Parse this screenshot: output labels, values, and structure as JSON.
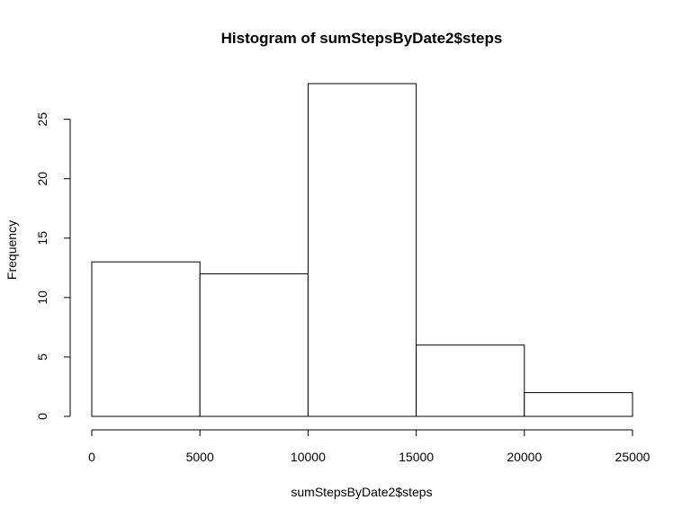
{
  "chart_data": {
    "type": "bar",
    "title": "Histogram of sumStepsByDate2$steps",
    "xlabel": "sumStepsByDate2$steps",
    "ylabel": "Frequency",
    "bins": [
      {
        "start": 0,
        "end": 5000,
        "count": 13
      },
      {
        "start": 5000,
        "end": 10000,
        "count": 12
      },
      {
        "start": 10000,
        "end": 15000,
        "count": 28
      },
      {
        "start": 15000,
        "end": 20000,
        "count": 6
      },
      {
        "start": 20000,
        "end": 25000,
        "count": 2
      }
    ],
    "xlim": [
      0,
      25000
    ],
    "ylim": [
      0,
      28
    ],
    "xticks": [
      0,
      5000,
      10000,
      15000,
      20000,
      25000
    ],
    "yticks": [
      0,
      5,
      10,
      15,
      20,
      25
    ],
    "grid": false,
    "bar_fill": "#ffffff",
    "bar_stroke": "#000000"
  }
}
